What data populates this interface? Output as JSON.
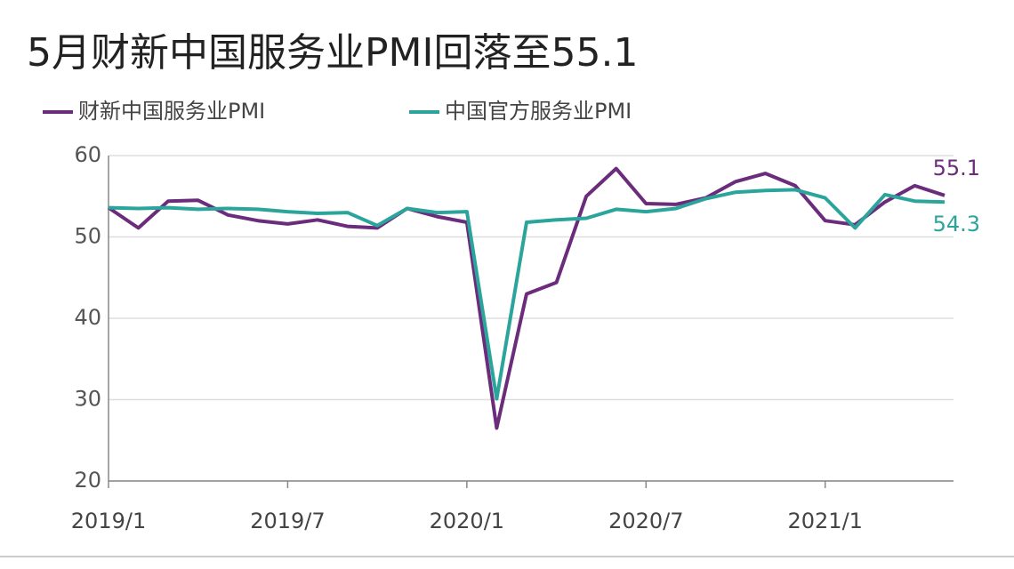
{
  "chart_data": {
    "type": "line",
    "title": "5月财新中国服务业PMI回落至55.1",
    "categories": [
      "2019/1",
      null,
      null,
      null,
      null,
      null,
      "2019/7",
      null,
      null,
      null,
      null,
      null,
      "2020/1",
      null,
      null,
      null,
      null,
      null,
      "2020/7",
      null,
      null,
      null,
      null,
      null,
      "2021/1",
      null,
      null,
      null,
      null
    ],
    "series": [
      {
        "name": "财新中国服务业PMI",
        "color": "#6b2c7c",
        "values": [
          53.6,
          51.1,
          54.4,
          54.5,
          52.7,
          52.0,
          51.6,
          52.1,
          51.3,
          51.1,
          53.5,
          52.5,
          51.8,
          26.5,
          43.0,
          44.4,
          55.0,
          58.4,
          54.1,
          54.0,
          54.8,
          56.8,
          57.8,
          56.3,
          52.0,
          51.5,
          54.3,
          56.3,
          55.1
        ]
      },
      {
        "name": "中国官方服务业PMI",
        "color": "#2ba59b",
        "values": [
          53.6,
          53.5,
          53.6,
          53.4,
          53.5,
          53.4,
          53.1,
          52.9,
          53.0,
          51.4,
          53.5,
          53.0,
          53.1,
          30.1,
          51.8,
          52.1,
          52.3,
          53.4,
          53.1,
          53.5,
          54.7,
          55.5,
          55.7,
          55.8,
          54.8,
          51.1,
          55.2,
          54.4,
          54.3
        ]
      }
    ],
    "ylim": [
      20,
      60
    ],
    "yticks": [
      20,
      30,
      40,
      50,
      60
    ],
    "grid": true
  }
}
